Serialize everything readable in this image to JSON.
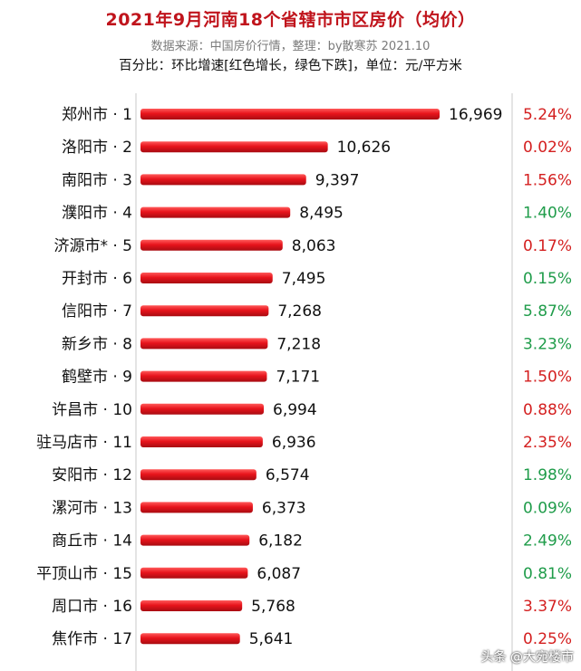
{
  "header": {
    "title": "2021年9月河南18个省辖市市区房价（均价）",
    "source": "数据来源：中国房价行情，整理：by散寒苏 2021.10",
    "subtitle": "百分比：环比增速[红色增长，绿色下跌]，单位：元/平方米"
  },
  "watermark": "头条 @大宛楼市",
  "colors": {
    "bar": "#e8141c",
    "up": "#d42020",
    "down": "#1f9c4a",
    "title": "#c0141c"
  },
  "chart_data": {
    "type": "bar",
    "orientation": "horizontal",
    "title": "2021年9月河南18个省辖市市区房价（均价）",
    "unit": "元/平方米",
    "xlim": [
      0,
      16969
    ],
    "categories": [
      "郑州市 · 1",
      "洛阳市 · 2",
      "南阳市 · 3",
      "濮阳市 · 4",
      "济源市* · 5",
      "开封市 · 6",
      "信阳市 · 7",
      "新乡市 · 8",
      "鹤壁市 · 9",
      "许昌市 · 10",
      "驻马店市 · 11",
      "安阳市 · 12",
      "漯河市 · 13",
      "商丘市 · 14",
      "平顶山市 · 15",
      "周口市 · 16",
      "焦作市 · 17"
    ],
    "values": [
      16969,
      10626,
      9397,
      8495,
      8063,
      7495,
      7268,
      7218,
      7171,
      6994,
      6936,
      6574,
      6373,
      6182,
      6087,
      5768,
      5641
    ],
    "value_labels": [
      "16,969",
      "10,626",
      "9,397",
      "8,495",
      "8,063",
      "7,495",
      "7,268",
      "7,218",
      "7,171",
      "6,994",
      "6,936",
      "6,574",
      "6,373",
      "6,182",
      "6,087",
      "5,768",
      "5,641"
    ],
    "growth_labels": [
      "5.24%",
      "0.02%",
      "1.56%",
      "1.40%",
      "0.17%",
      "0.15%",
      "5.87%",
      "3.23%",
      "1.50%",
      "0.88%",
      "2.35%",
      "1.98%",
      "0.09%",
      "2.49%",
      "0.81%",
      "3.37%",
      "0.25%"
    ],
    "growth_direction": [
      "up",
      "up",
      "up",
      "down",
      "up",
      "down",
      "down",
      "down",
      "up",
      "up",
      "up",
      "down",
      "down",
      "down",
      "down",
      "up",
      "up"
    ]
  }
}
